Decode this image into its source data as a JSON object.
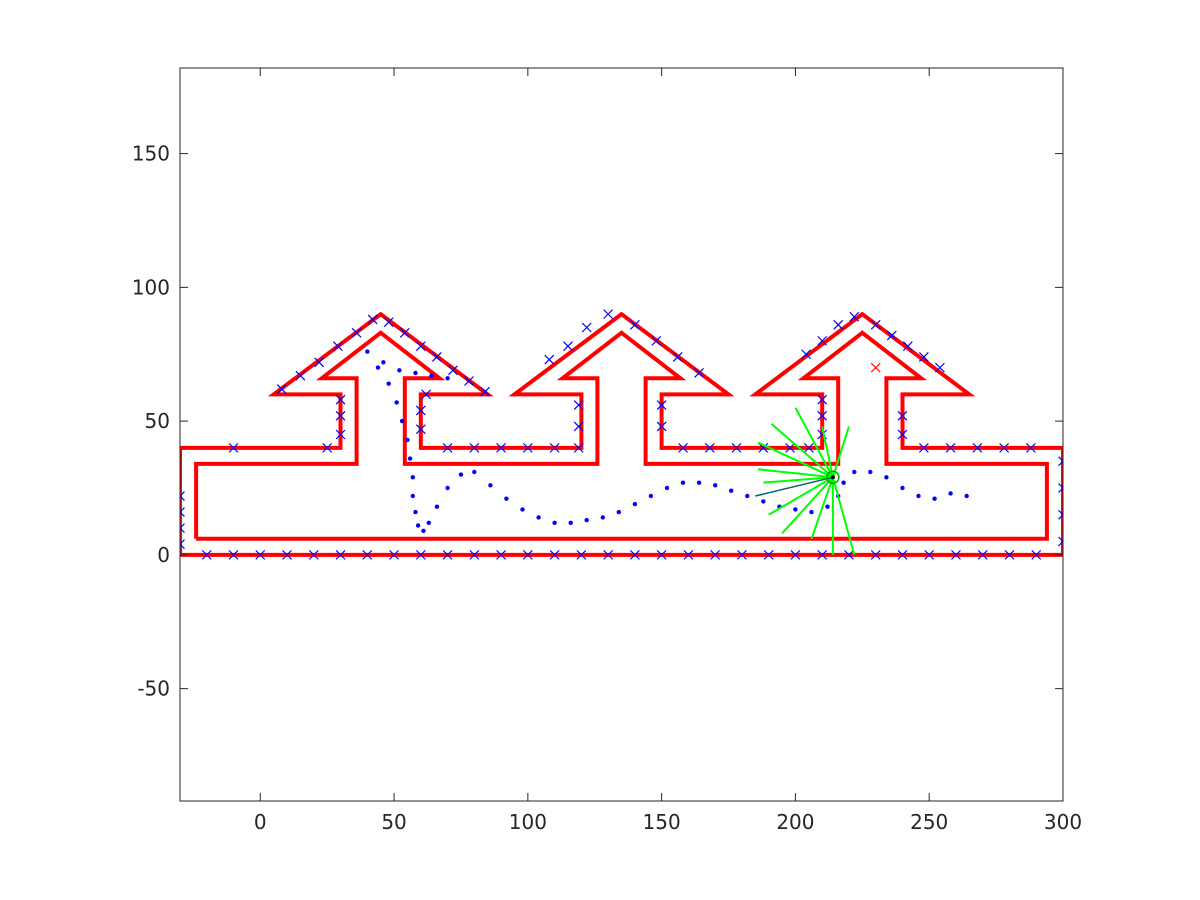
{
  "chart_data": {
    "type": "scatter",
    "title": "",
    "xlabel": "",
    "ylabel": "",
    "xlim": [
      -30,
      300
    ],
    "ylim": [
      -92,
      182
    ],
    "xticks": [
      0,
      50,
      100,
      150,
      200,
      250,
      300
    ],
    "yticks": [
      -50,
      0,
      50,
      100,
      150
    ],
    "xtick_labels": [
      "0",
      "50",
      "100",
      "150",
      "200",
      "250",
      "300"
    ],
    "ytick_labels": [
      "-50",
      "0",
      "50",
      "100",
      "150"
    ],
    "grid": false,
    "box": true,
    "series": [
      {
        "kind": "map-boundary",
        "color": "#ff0000",
        "style": "line",
        "points": [
          [
            -30,
            0
          ],
          [
            300,
            0
          ],
          [
            300,
            40
          ],
          [
            240,
            40
          ],
          [
            240,
            60
          ],
          [
            265,
            60
          ],
          [
            225,
            90
          ],
          [
            185,
            60
          ],
          [
            210,
            60
          ],
          [
            210,
            40
          ],
          [
            150,
            40
          ],
          [
            150,
            60
          ],
          [
            175,
            60
          ],
          [
            135,
            90
          ],
          [
            95,
            60
          ],
          [
            120,
            60
          ],
          [
            120,
            40
          ],
          [
            60,
            40
          ],
          [
            60,
            60
          ],
          [
            85,
            60
          ],
          [
            45,
            90
          ],
          [
            5,
            60
          ],
          [
            30,
            60
          ],
          [
            30,
            40
          ],
          [
            -30,
            40
          ],
          [
            -30,
            0
          ]
        ]
      },
      {
        "kind": "map-boundary-inner",
        "color": "#ff0000",
        "style": "line",
        "points": [
          [
            -24,
            6
          ],
          [
            294,
            6
          ],
          [
            294,
            34
          ],
          [
            234,
            34
          ],
          [
            234,
            66
          ],
          [
            247,
            66
          ],
          [
            225,
            83
          ],
          [
            203,
            66
          ],
          [
            216,
            66
          ],
          [
            216,
            34
          ],
          [
            144,
            34
          ],
          [
            144,
            66
          ],
          [
            157,
            66
          ],
          [
            135,
            83
          ],
          [
            113,
            66
          ],
          [
            126,
            66
          ],
          [
            126,
            34
          ],
          [
            54,
            34
          ],
          [
            54,
            66
          ],
          [
            67,
            66
          ],
          [
            45,
            83
          ],
          [
            23,
            66
          ],
          [
            36,
            66
          ],
          [
            36,
            34
          ],
          [
            -24,
            34
          ],
          [
            -24,
            6
          ]
        ]
      },
      {
        "kind": "trajectory",
        "color": "#0000ff",
        "style": "dots",
        "points": [
          [
            40,
            76
          ],
          [
            44,
            70
          ],
          [
            48,
            64
          ],
          [
            51,
            57
          ],
          [
            53,
            50
          ],
          [
            55,
            43
          ],
          [
            56,
            36
          ],
          [
            57,
            29
          ],
          [
            57,
            22
          ],
          [
            58,
            16
          ],
          [
            59,
            11
          ],
          [
            61,
            9
          ],
          [
            63,
            12
          ],
          [
            66,
            18
          ],
          [
            70,
            25
          ],
          [
            75,
            30
          ],
          [
            80,
            31
          ],
          [
            86,
            26
          ],
          [
            92,
            21
          ],
          [
            98,
            17
          ],
          [
            104,
            14
          ],
          [
            110,
            12
          ],
          [
            116,
            12
          ],
          [
            122,
            13
          ],
          [
            128,
            14
          ],
          [
            134,
            16
          ],
          [
            140,
            19
          ],
          [
            146,
            22
          ],
          [
            152,
            25
          ],
          [
            158,
            27
          ],
          [
            164,
            27
          ],
          [
            170,
            26
          ],
          [
            176,
            24
          ],
          [
            182,
            22
          ],
          [
            188,
            20
          ],
          [
            194,
            18
          ],
          [
            200,
            17
          ],
          [
            206,
            16
          ],
          [
            212,
            18
          ],
          [
            216,
            22
          ],
          [
            218,
            27
          ],
          [
            222,
            31
          ],
          [
            228,
            31
          ],
          [
            234,
            29
          ],
          [
            240,
            25
          ],
          [
            246,
            22
          ],
          [
            252,
            21
          ],
          [
            258,
            23
          ],
          [
            264,
            22
          ],
          [
            46,
            72
          ],
          [
            52,
            69
          ],
          [
            58,
            68
          ],
          [
            64,
            67
          ],
          [
            70,
            66
          ]
        ]
      },
      {
        "kind": "landmarks",
        "color": "#0000ff",
        "marker": "x",
        "points": [
          [
            -30,
            4
          ],
          [
            -30,
            10
          ],
          [
            -30,
            16
          ],
          [
            -30,
            22
          ],
          [
            -20,
            0
          ],
          [
            -10,
            0
          ],
          [
            0,
            0
          ],
          [
            10,
            0
          ],
          [
            20,
            0
          ],
          [
            30,
            0
          ],
          [
            40,
            0
          ],
          [
            50,
            0
          ],
          [
            60,
            0
          ],
          [
            70,
            0
          ],
          [
            80,
            0
          ],
          [
            90,
            0
          ],
          [
            100,
            0
          ],
          [
            110,
            0
          ],
          [
            120,
            0
          ],
          [
            130,
            0
          ],
          [
            140,
            0
          ],
          [
            150,
            0
          ],
          [
            160,
            0
          ],
          [
            170,
            0
          ],
          [
            180,
            0
          ],
          [
            190,
            0
          ],
          [
            200,
            0
          ],
          [
            210,
            0
          ],
          [
            220,
            0
          ],
          [
            230,
            0
          ],
          [
            240,
            0
          ],
          [
            250,
            0
          ],
          [
            260,
            0
          ],
          [
            270,
            0
          ],
          [
            280,
            0
          ],
          [
            290,
            0
          ],
          [
            300,
            5
          ],
          [
            300,
            15
          ],
          [
            300,
            25
          ],
          [
            300,
            35
          ],
          [
            -10,
            40
          ],
          [
            25,
            40
          ],
          [
            30,
            45
          ],
          [
            30,
            52
          ],
          [
            30,
            58
          ],
          [
            8,
            62
          ],
          [
            15,
            67
          ],
          [
            22,
            72
          ],
          [
            29,
            78
          ],
          [
            36,
            83
          ],
          [
            42,
            88
          ],
          [
            48,
            87
          ],
          [
            54,
            83
          ],
          [
            60,
            78
          ],
          [
            66,
            74
          ],
          [
            72,
            69
          ],
          [
            78,
            65
          ],
          [
            84,
            61
          ],
          [
            62,
            60
          ],
          [
            60,
            54
          ],
          [
            60,
            47
          ],
          [
            70,
            40
          ],
          [
            80,
            40
          ],
          [
            90,
            40
          ],
          [
            100,
            40
          ],
          [
            110,
            40
          ],
          [
            119,
            40
          ],
          [
            119,
            48
          ],
          [
            119,
            56
          ],
          [
            108,
            73
          ],
          [
            115,
            78
          ],
          [
            122,
            85
          ],
          [
            130,
            90
          ],
          [
            140,
            86
          ],
          [
            148,
            80
          ],
          [
            156,
            74
          ],
          [
            164,
            68
          ],
          [
            150,
            56
          ],
          [
            150,
            48
          ],
          [
            158,
            40
          ],
          [
            168,
            40
          ],
          [
            178,
            40
          ],
          [
            188,
            40
          ],
          [
            198,
            40
          ],
          [
            205,
            40
          ],
          [
            210,
            45
          ],
          [
            210,
            52
          ],
          [
            210,
            58
          ],
          [
            204,
            75
          ],
          [
            210,
            80
          ],
          [
            216,
            86
          ],
          [
            222,
            89
          ],
          [
            230,
            86
          ],
          [
            236,
            82
          ],
          [
            242,
            78
          ],
          [
            248,
            74
          ],
          [
            254,
            70
          ],
          [
            240,
            52
          ],
          [
            240,
            45
          ],
          [
            248,
            40
          ],
          [
            258,
            40
          ],
          [
            268,
            40
          ],
          [
            278,
            40
          ],
          [
            288,
            40
          ]
        ]
      },
      {
        "kind": "target",
        "color": "#ff0000",
        "marker": "x",
        "points": [
          [
            230,
            70
          ]
        ]
      }
    ],
    "robot": {
      "position": [
        214,
        29
      ],
      "heading_to": [
        185,
        22
      ],
      "body_color": "#00aa00",
      "heading_color": "#006666",
      "scan_color": "#00ff00",
      "scan_endpoints": [
        [
          200,
          55
        ],
        [
          210,
          48
        ],
        [
          220,
          48
        ],
        [
          191,
          49
        ],
        [
          186,
          42
        ],
        [
          186,
          32
        ],
        [
          188,
          27
        ],
        [
          190,
          15
        ],
        [
          195,
          8
        ],
        [
          206,
          6
        ],
        [
          214,
          0
        ],
        [
          222,
          0
        ]
      ]
    }
  }
}
